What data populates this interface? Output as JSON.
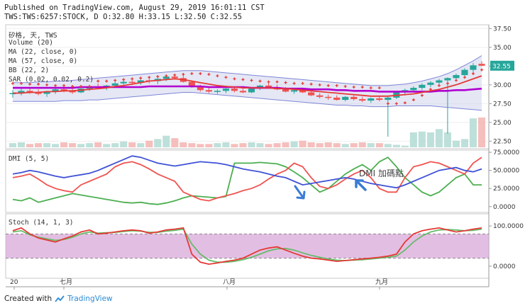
{
  "header": {
    "line1": "Published on TradingView.com, August 29, 2019 16:01:11 CST",
    "line2": "TWS:TWS:6257:STOCK, D O:32.80 H:33.15 L:32.50 C:32.55"
  },
  "footer": {
    "created_with": "Created with",
    "brand": "TradingView"
  },
  "price_pane": {
    "labels": [
      "矽格, 天, TWS",
      "Volume (20)",
      "MA (22, close, 0)",
      "MA (57, close, 0)",
      "BB (22, 2)",
      "SAR (0.02, 0.02, 0.2)"
    ],
    "axis_ticks": [
      "37.50",
      "35.00",
      "32.50",
      "30.00",
      "27.50",
      "25.00",
      "22.50"
    ],
    "last_price": "32.55"
  },
  "dmi_pane": {
    "label": "DMI (5, 5)",
    "axis_ticks": [
      "75.0000",
      "50.0000",
      "25.0000",
      "0.0000"
    ],
    "annotation": "DMI 加碼點"
  },
  "stoch_pane": {
    "label": "Stoch (14, 1, 3)",
    "axis_ticks": [
      "100.0000",
      "0.0000"
    ]
  },
  "x_axis": {
    "ticks": [
      "20",
      "七月",
      "八月",
      "九月"
    ]
  },
  "colors": {
    "up": "#26a69a",
    "down": "#ef5350",
    "ma22": "#e53935",
    "ma57": "#b000d0",
    "bb_fill": "#c5cae9",
    "sar": "#e53935",
    "di_plus": "#4caf50",
    "di_minus": "#ef5350",
    "adx": "#3f51d6",
    "stoch_band": "#d9a8d9",
    "price_label": "#26a69a"
  },
  "chart_data": [
    {
      "type": "candlestick",
      "title": "矽格, 天, TWS",
      "ylim": [
        21.5,
        38.0
      ],
      "ohlc": [
        [
          28.8,
          29.3,
          28.3,
          28.9
        ],
        [
          28.9,
          29.5,
          28.6,
          29.2
        ],
        [
          29.2,
          29.6,
          28.8,
          29.0
        ],
        [
          29.0,
          29.4,
          28.6,
          28.8
        ],
        [
          28.8,
          29.2,
          28.4,
          29.1
        ],
        [
          29.1,
          29.6,
          28.8,
          29.4
        ],
        [
          29.4,
          29.8,
          29.0,
          29.2
        ],
        [
          29.2,
          29.5,
          28.8,
          29.0
        ],
        [
          29.0,
          29.6,
          28.9,
          29.5
        ],
        [
          29.5,
          30.0,
          29.2,
          29.8
        ],
        [
          29.8,
          30.2,
          29.4,
          29.6
        ],
        [
          29.6,
          30.0,
          29.3,
          29.9
        ],
        [
          29.9,
          30.4,
          29.6,
          30.2
        ],
        [
          30.2,
          30.6,
          29.9,
          30.4
        ],
        [
          30.4,
          30.8,
          30.0,
          30.3
        ],
        [
          30.3,
          30.7,
          30.0,
          30.6
        ],
        [
          30.6,
          31.0,
          30.2,
          30.5
        ],
        [
          30.5,
          30.9,
          30.1,
          30.8
        ],
        [
          30.8,
          31.3,
          30.5,
          31.1
        ],
        [
          31.1,
          31.5,
          30.7,
          30.9
        ],
        [
          30.9,
          31.2,
          30.3,
          30.4
        ],
        [
          30.4,
          30.6,
          29.6,
          29.8
        ],
        [
          29.8,
          30.0,
          29.1,
          29.3
        ],
        [
          29.3,
          29.6,
          28.9,
          29.1
        ],
        [
          29.1,
          29.4,
          28.8,
          29.2
        ],
        [
          29.2,
          29.6,
          28.9,
          29.5
        ],
        [
          29.5,
          29.8,
          29.0,
          29.2
        ],
        [
          29.2,
          29.5,
          28.9,
          29.0
        ],
        [
          29.0,
          29.6,
          28.9,
          29.5
        ],
        [
          29.5,
          30.0,
          29.3,
          29.9
        ],
        [
          29.9,
          30.3,
          29.6,
          29.7
        ],
        [
          29.7,
          30.0,
          29.3,
          29.4
        ],
        [
          29.4,
          29.7,
          29.0,
          29.1
        ],
        [
          29.1,
          29.4,
          28.8,
          29.3
        ],
        [
          29.3,
          29.6,
          28.9,
          29.0
        ],
        [
          29.0,
          29.3,
          28.5,
          28.6
        ],
        [
          28.6,
          28.9,
          28.2,
          28.4
        ],
        [
          28.4,
          28.7,
          28.0,
          28.3
        ],
        [
          28.3,
          28.6,
          27.9,
          28.0
        ],
        [
          28.0,
          28.5,
          27.8,
          28.4
        ],
        [
          28.4,
          28.6,
          27.9,
          28.1
        ],
        [
          28.1,
          28.4,
          27.7,
          27.9
        ],
        [
          27.9,
          28.3,
          27.6,
          28.2
        ],
        [
          28.2,
          28.5,
          27.8,
          28.0
        ],
        [
          28.0,
          28.4,
          23.1,
          28.3
        ],
        [
          28.3,
          29.2,
          28.1,
          29.0
        ],
        [
          29.0,
          29.5,
          28.6,
          29.3
        ],
        [
          29.3,
          29.8,
          29.0,
          29.6
        ],
        [
          29.6,
          30.2,
          29.3,
          30.0
        ],
        [
          30.0,
          30.5,
          29.7,
          30.3
        ],
        [
          30.3,
          30.8,
          29.9,
          30.6
        ],
        [
          30.6,
          31.0,
          23.5,
          30.9
        ],
        [
          30.9,
          31.5,
          30.6,
          31.3
        ],
        [
          31.3,
          32.2,
          31.0,
          32.0
        ],
        [
          32.0,
          32.9,
          31.7,
          32.6
        ],
        [
          32.8,
          33.15,
          32.5,
          32.55
        ]
      ],
      "volume": [
        5,
        6,
        4,
        5,
        5,
        4,
        6,
        5,
        4,
        5,
        6,
        4,
        5,
        7,
        6,
        5,
        8,
        10,
        14,
        11,
        6,
        5,
        4,
        4,
        5,
        6,
        4,
        5,
        6,
        5,
        4,
        5,
        6,
        7,
        8,
        6,
        5,
        6,
        5,
        4,
        5,
        6,
        5,
        5,
        4,
        3,
        2,
        18,
        19,
        18,
        22,
        18,
        8,
        10,
        35,
        36
      ],
      "ma22": [
        28.9,
        28.9,
        29.0,
        29.0,
        29.1,
        29.1,
        29.2,
        29.2,
        29.3,
        29.4,
        29.5,
        29.6,
        29.8,
        29.9,
        30.1,
        30.3,
        30.5,
        30.6,
        30.7,
        30.8,
        30.7,
        30.5,
        30.3,
        30.1,
        29.9,
        29.8,
        29.7,
        29.6,
        29.6,
        29.6,
        29.6,
        29.5,
        29.5,
        29.4,
        29.3,
        29.2,
        29.1,
        29.0,
        28.9,
        28.8,
        28.7,
        28.6,
        28.5,
        28.5,
        28.5,
        28.6,
        28.7,
        28.8,
        29.0,
        29.2,
        29.4,
        29.7,
        30.0,
        30.4,
        30.8,
        31.2
      ],
      "ma57": [
        29.6,
        29.6,
        29.6,
        29.6,
        29.6,
        29.6,
        29.6,
        29.6,
        29.7,
        29.7,
        29.7,
        29.7,
        29.7,
        29.7,
        29.7,
        29.7,
        29.8,
        29.8,
        29.8,
        29.8,
        29.8,
        29.8,
        29.8,
        29.7,
        29.7,
        29.7,
        29.7,
        29.7,
        29.6,
        29.6,
        29.6,
        29.6,
        29.5,
        29.5,
        29.5,
        29.4,
        29.4,
        29.4,
        29.3,
        29.3,
        29.2,
        29.2,
        29.2,
        29.1,
        29.1,
        29.1,
        29.1,
        29.1,
        29.1,
        29.1,
        29.2,
        29.2,
        29.3,
        29.3,
        29.4,
        29.5
      ],
      "bb_upper": [
        30.3,
        30.3,
        30.3,
        30.4,
        30.4,
        30.5,
        30.5,
        30.6,
        30.7,
        30.8,
        30.9,
        31.0,
        31.1,
        31.2,
        31.3,
        31.4,
        31.5,
        31.6,
        31.7,
        31.8,
        31.9,
        31.9,
        31.9,
        31.8,
        31.7,
        31.6,
        31.5,
        31.4,
        31.3,
        31.2,
        31.1,
        31.0,
        30.9,
        30.8,
        30.7,
        30.6,
        30.5,
        30.4,
        30.3,
        30.2,
        30.1,
        30.0,
        29.9,
        29.9,
        29.9,
        30.0,
        30.1,
        30.3,
        30.5,
        30.8,
        31.1,
        31.5,
        32.0,
        32.6,
        33.2,
        33.9
      ],
      "bb_lower": [
        27.8,
        27.8,
        27.8,
        27.8,
        27.8,
        27.8,
        27.9,
        27.9,
        27.9,
        28.0,
        28.0,
        28.1,
        28.2,
        28.3,
        28.4,
        28.5,
        28.6,
        28.7,
        28.8,
        28.9,
        29.0,
        29.0,
        28.9,
        28.8,
        28.7,
        28.6,
        28.5,
        28.4,
        28.3,
        28.2,
        28.1,
        28.0,
        27.9,
        27.8,
        27.7,
        27.6,
        27.5,
        27.4,
        27.3,
        27.3,
        27.2,
        27.2,
        27.1,
        27.1,
        27.1,
        27.2,
        27.2,
        27.2,
        27.2,
        27.2,
        27.1,
        27.0,
        26.9,
        26.8,
        26.7,
        26.6
      ],
      "sar": [
        30.2,
        30.2,
        30.1,
        30.1,
        30.0,
        29.9,
        29.9,
        29.8,
        29.8,
        29.8,
        30.5,
        30.5,
        30.6,
        30.7,
        30.8,
        30.9,
        31.0,
        31.1,
        31.2,
        31.3,
        31.4,
        31.5,
        31.5,
        31.4,
        31.2,
        31.0,
        30.8,
        30.7,
        30.6,
        30.5,
        30.4,
        30.4,
        30.3,
        30.2,
        30.2,
        30.1,
        30.0,
        29.9,
        29.9,
        29.8,
        29.7,
        29.7,
        29.6,
        29.6,
        27.5,
        27.5,
        27.6,
        28.0,
        28.6,
        29.4,
        29.9,
        30.2,
        30.6,
        31.0,
        31.5,
        32.0
      ]
    },
    {
      "type": "line",
      "title": "DMI (5, 5)",
      "ylim": [
        -8,
        78
      ],
      "series": [
        {
          "name": "+DI",
          "values": [
            10,
            8,
            12,
            6,
            9,
            12,
            15,
            18,
            16,
            14,
            12,
            10,
            8,
            6,
            5,
            6,
            4,
            3,
            5,
            8,
            12,
            15,
            14,
            13,
            12,
            14,
            60,
            60,
            60,
            61,
            60,
            59,
            55,
            48,
            40,
            30,
            20,
            25,
            35,
            45,
            52,
            58,
            50,
            62,
            68,
            55,
            40,
            30,
            20,
            15,
            20,
            30,
            40,
            45,
            30,
            30
          ]
        },
        {
          "name": "-DI",
          "values": [
            40,
            42,
            45,
            38,
            30,
            25,
            22,
            20,
            30,
            35,
            40,
            45,
            55,
            60,
            62,
            58,
            52,
            45,
            40,
            35,
            20,
            15,
            10,
            8,
            12,
            15,
            18,
            22,
            25,
            30,
            38,
            45,
            50,
            60,
            55,
            40,
            28,
            25,
            30,
            38,
            45,
            50,
            40,
            25,
            20,
            20,
            40,
            55,
            58,
            62,
            60,
            55,
            50,
            45,
            60,
            68
          ]
        },
        {
          "name": "ADX",
          "values": [
            45,
            47,
            50,
            48,
            45,
            42,
            40,
            42,
            44,
            46,
            50,
            55,
            60,
            65,
            70,
            68,
            64,
            60,
            58,
            56,
            58,
            60,
            62,
            61,
            60,
            58,
            55,
            52,
            50,
            48,
            45,
            42,
            40,
            35,
            30,
            32,
            34,
            36,
            38,
            40,
            38,
            35,
            32,
            30,
            28,
            26,
            30,
            35,
            40,
            45,
            50,
            52,
            54,
            50,
            48,
            52
          ]
        }
      ]
    },
    {
      "type": "line",
      "title": "Stoch (14, 1, 3)",
      "ylim": [
        -30,
        130
      ],
      "series": [
        {
          "name": "%K",
          "values": [
            88,
            95,
            80,
            70,
            65,
            60,
            68,
            75,
            85,
            90,
            80,
            82,
            85,
            88,
            90,
            88,
            82,
            85,
            90,
            92,
            95,
            30,
            10,
            5,
            8,
            12,
            15,
            20,
            30,
            40,
            45,
            48,
            40,
            32,
            25,
            20,
            18,
            15,
            12,
            14,
            16,
            18,
            20,
            22,
            25,
            30,
            60,
            80,
            88,
            92,
            95,
            90,
            85,
            88,
            92,
            95
          ]
        },
        {
          "name": "%D",
          "values": [
            85,
            88,
            78,
            72,
            68,
            64,
            66,
            72,
            80,
            85,
            82,
            83,
            84,
            86,
            88,
            87,
            84,
            84,
            87,
            89,
            92,
            55,
            30,
            15,
            10,
            10,
            12,
            16,
            22,
            30,
            38,
            43,
            44,
            40,
            33,
            27,
            22,
            18,
            15,
            14,
            15,
            16,
            18,
            20,
            22,
            25,
            40,
            60,
            75,
            85,
            90,
            91,
            90,
            88,
            89,
            92
          ]
        }
      ],
      "band": [
        20,
        80
      ]
    }
  ]
}
